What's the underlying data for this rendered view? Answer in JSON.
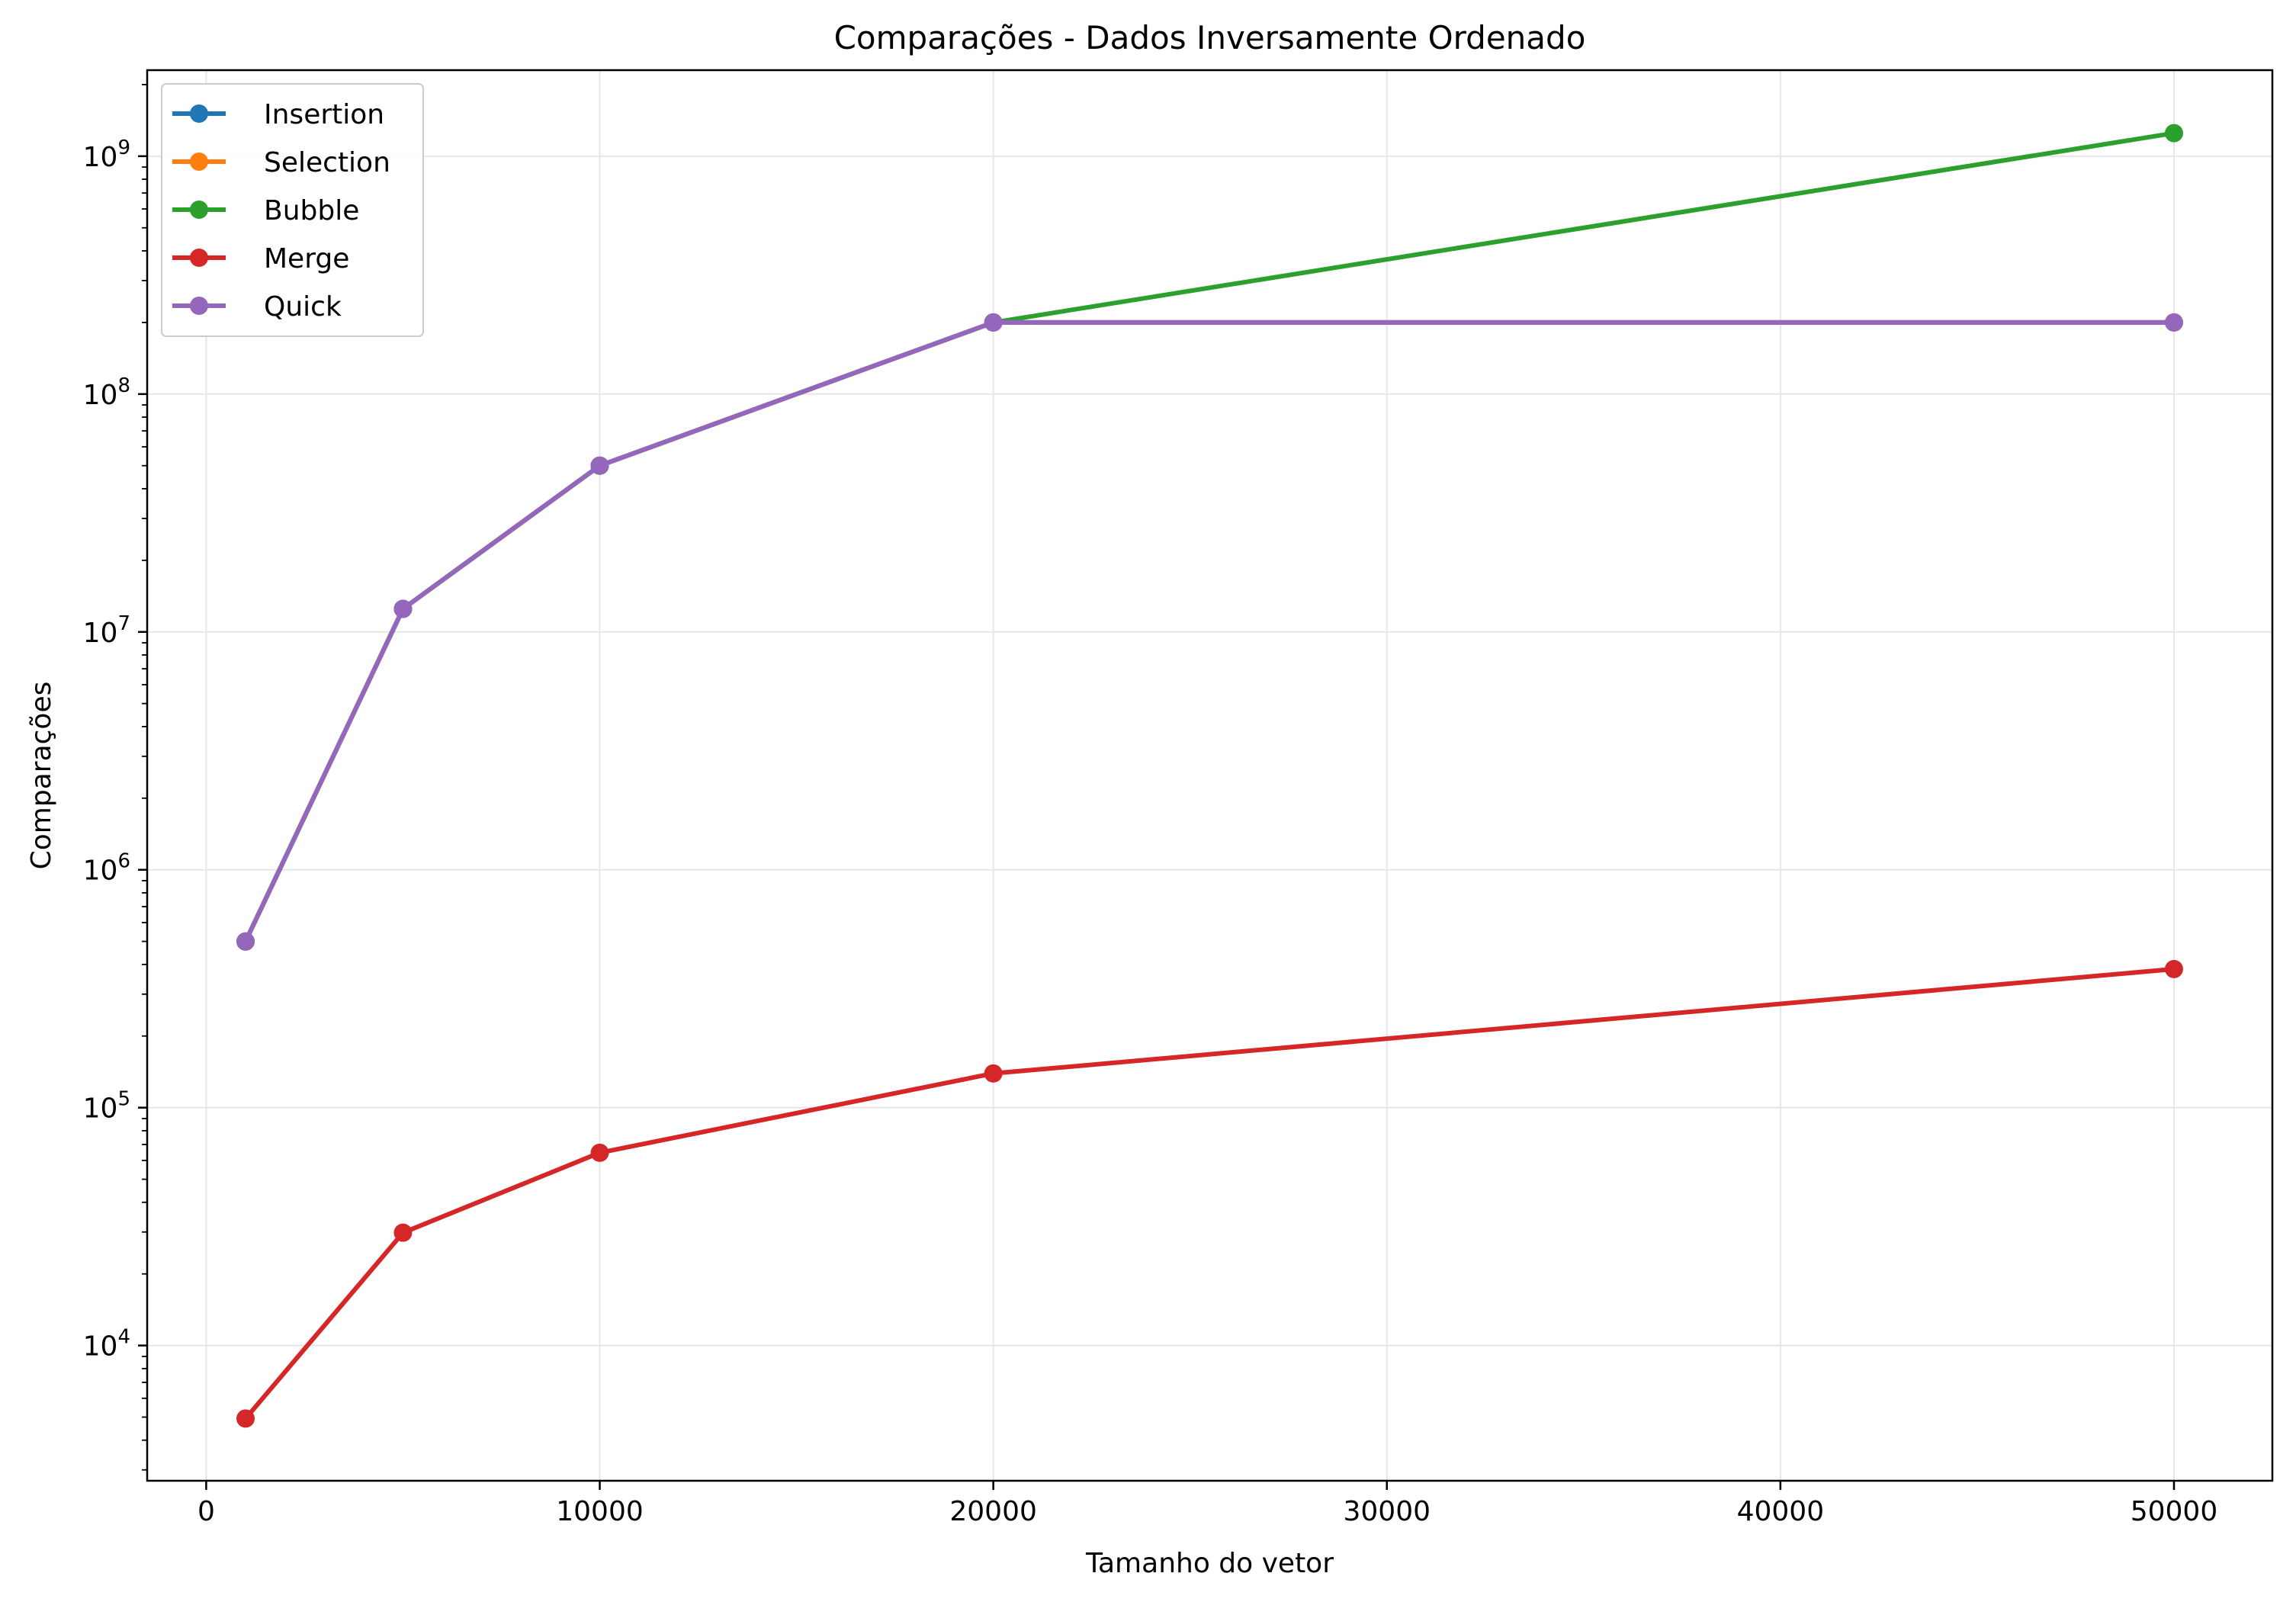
{
  "chart_data": {
    "type": "line",
    "title": "Comparações - Dados Inversamente Ordenado",
    "xlabel": "Tamanho do vetor",
    "ylabel": "Comparações",
    "x": [
      1000,
      5000,
      10000,
      20000,
      50000
    ],
    "x_ticks": [
      {
        "value": 0,
        "label": "0"
      },
      {
        "value": 10000,
        "label": "10000"
      },
      {
        "value": 20000,
        "label": "20000"
      },
      {
        "value": 30000,
        "label": "30000"
      },
      {
        "value": 40000,
        "label": "40000"
      },
      {
        "value": 50000,
        "label": "50000"
      }
    ],
    "y_ticks": [
      {
        "value": 10000,
        "base": "10",
        "exp": "4"
      },
      {
        "value": 100000,
        "base": "10",
        "exp": "5"
      },
      {
        "value": 1000000,
        "base": "10",
        "exp": "6"
      },
      {
        "value": 10000000,
        "base": "10",
        "exp": "7"
      },
      {
        "value": 100000000,
        "base": "10",
        "exp": "8"
      },
      {
        "value": 1000000000,
        "base": "10",
        "exp": "9"
      }
    ],
    "xlim": [
      -1500,
      52500
    ],
    "ylim": [
      2700,
      2300000000
    ],
    "yscale": "log",
    "grid": true,
    "legend_position": "top-left",
    "series": [
      {
        "name": "Insertion",
        "color": "#1f77b4",
        "values": [
          499500,
          12497500,
          49995000,
          199990000,
          199990000
        ]
      },
      {
        "name": "Selection",
        "color": "#ff7f0e",
        "values": [
          499500,
          12497500,
          49995000,
          199990000,
          199990000
        ]
      },
      {
        "name": "Bubble",
        "color": "#2ca02c",
        "values": [
          499500,
          12497500,
          49995000,
          199990000,
          1249975000
        ]
      },
      {
        "name": "Merge",
        "color": "#d62728",
        "values": [
          4932,
          29804,
          64608,
          139216,
          382512
        ]
      },
      {
        "name": "Quick",
        "color": "#9467bd",
        "values": [
          499500,
          12497500,
          49995000,
          199990000,
          199990000
        ]
      }
    ]
  }
}
